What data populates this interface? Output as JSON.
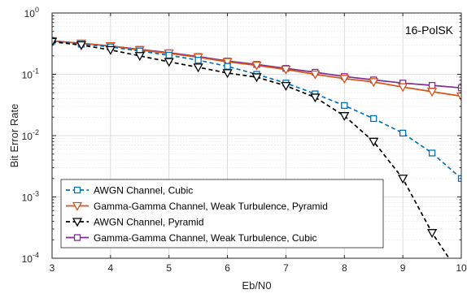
{
  "chart_data": {
    "type": "line",
    "title": "",
    "xlabel": "Eb/N0",
    "ylabel": "Bit Error Rate",
    "xlim": [
      3,
      10
    ],
    "ylim": [
      0.0001,
      1
    ],
    "yscale": "log",
    "grid": true,
    "legend_position": "bottom-left",
    "annotation": "16-PolSK",
    "x_tick_labels": [
      "3",
      "4",
      "5",
      "6",
      "7",
      "8",
      "9",
      "10"
    ],
    "y_tick_labels": [
      {
        "base": "10",
        "exp": "0"
      },
      {
        "base": "10",
        "exp": "-1"
      },
      {
        "base": "10",
        "exp": "-2"
      },
      {
        "base": "10",
        "exp": "-3"
      },
      {
        "base": "10",
        "exp": "-4"
      }
    ],
    "x": [
      3,
      3.5,
      4,
      4.5,
      5,
      5.5,
      6,
      6.5,
      7,
      7.5,
      8,
      8.5,
      9,
      9.5,
      10
    ],
    "series": [
      {
        "name": "AWGN Channel, Cubic",
        "color": "#0072BD",
        "marker": "square",
        "dash": "dashed",
        "values": [
          0.35,
          0.31,
          0.28,
          0.24,
          0.205,
          0.17,
          0.135,
          0.1,
          0.072,
          0.048,
          0.031,
          0.019,
          0.011,
          0.0052,
          0.002
        ]
      },
      {
        "name": "Gamma-Gamma Channel, Weak Turbulence, Pyramid",
        "color": "#D95319",
        "marker": "triangle-down",
        "dash": "solid",
        "values": [
          0.35,
          0.32,
          0.29,
          0.25,
          0.22,
          0.19,
          0.16,
          0.14,
          0.12,
          0.1,
          0.085,
          0.075,
          0.062,
          0.052,
          0.044
        ]
      },
      {
        "name": "AWGN Channel, Pyramid",
        "color": "#000000",
        "marker": "triangle-down",
        "dash": "dashed",
        "values": [
          0.34,
          0.3,
          0.25,
          0.2,
          0.16,
          0.13,
          0.105,
          0.09,
          0.065,
          0.042,
          0.021,
          0.008,
          0.002,
          0.00026,
          5e-05
        ]
      },
      {
        "name": "Gamma-Gamma Channel, Weak Turbulence, Cubic",
        "color": "#7E2F8E",
        "marker": "square",
        "dash": "solid",
        "values": [
          0.35,
          0.32,
          0.29,
          0.255,
          0.225,
          0.195,
          0.165,
          0.145,
          0.125,
          0.108,
          0.092,
          0.081,
          0.072,
          0.066,
          0.06
        ]
      }
    ]
  }
}
